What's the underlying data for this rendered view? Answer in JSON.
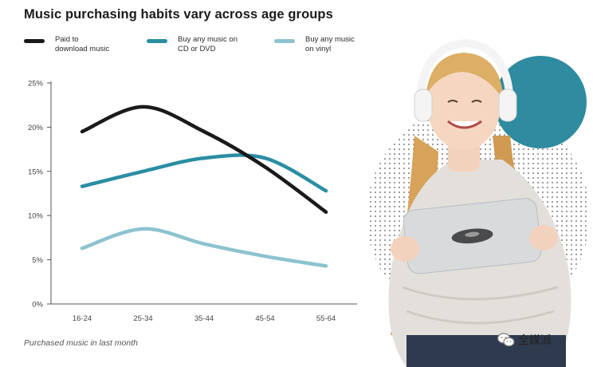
{
  "chart_data": {
    "type": "line",
    "title": "Music purchasing habits vary across age groups",
    "caption": "Purchased music in last month",
    "categories": [
      "16-24",
      "25-34",
      "35-44",
      "45-54",
      "55-64"
    ],
    "y_ticks": [
      "0%",
      "5%",
      "10%",
      "15%",
      "20%",
      "25%"
    ],
    "ylim": [
      0,
      25
    ],
    "grid": false,
    "legend_position": "top",
    "series": [
      {
        "name": "Paid to download music",
        "name_lines": [
          "Paid to",
          "download music"
        ],
        "color": "#1a1a1a",
        "values": [
          19.5,
          22.3,
          19.5,
          15.5,
          10.4
        ]
      },
      {
        "name": "Buy any music on CD or DVD",
        "name_lines": [
          "Buy any music on",
          "CD or DVD"
        ],
        "color": "#2a8ea3",
        "values": [
          13.3,
          15.0,
          16.5,
          16.5,
          12.8
        ]
      },
      {
        "name": "Buy any music on vinyl",
        "name_lines": [
          "Buy any music",
          "on vinyl"
        ],
        "color": "#8cc3cf",
        "values": [
          6.3,
          8.5,
          6.8,
          5.4,
          4.3
        ]
      }
    ]
  },
  "watermark": {
    "label": "全媒派",
    "icon": "wechat-icon"
  },
  "photo": {
    "icon": "girl-with-headphones-holding-vinyl-illustration",
    "accent_circle": "#2f8ba0"
  }
}
